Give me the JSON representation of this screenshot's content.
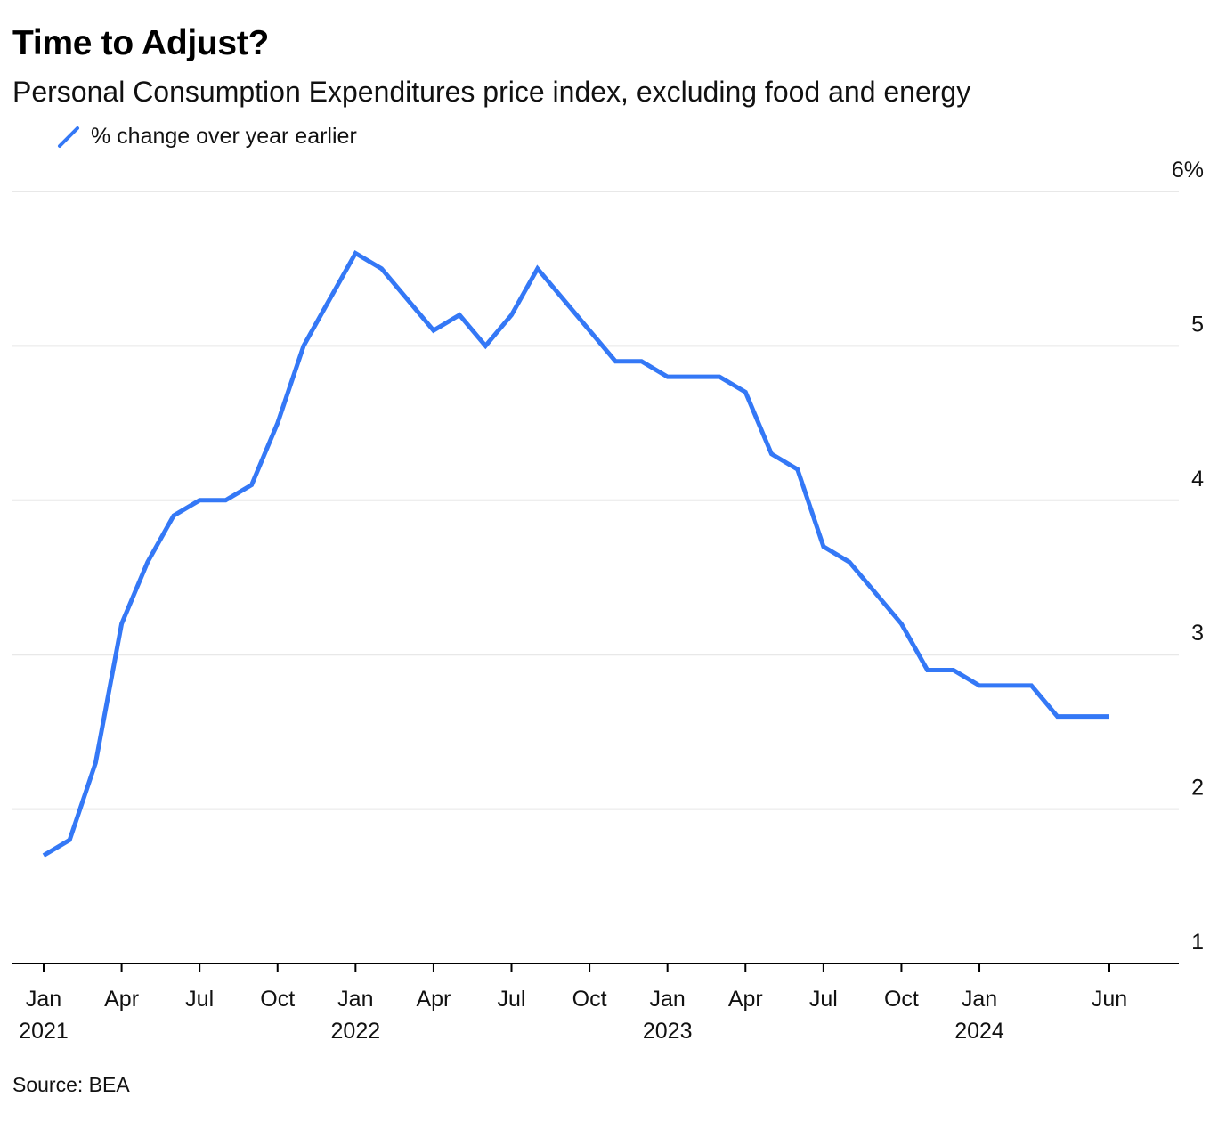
{
  "title": "Time to Adjust?",
  "subtitle": "Personal Consumption Expenditures price index, excluding food and energy",
  "legend": {
    "label": "% change over year earlier"
  },
  "source": "Source: BEA",
  "colors": {
    "series": "#3478f6",
    "grid": "#e8e8e8",
    "axis": "#000000"
  },
  "chart_data": {
    "type": "line",
    "title": "Time to Adjust?",
    "subtitle": "Personal Consumption Expenditures price index, excluding food and energy",
    "xlabel": "",
    "ylabel": "",
    "ylim": [
      1,
      6
    ],
    "y_ticks": [
      {
        "value": 1,
        "label": "1"
      },
      {
        "value": 2,
        "label": "2"
      },
      {
        "value": 3,
        "label": "3"
      },
      {
        "value": 4,
        "label": "4"
      },
      {
        "value": 5,
        "label": "5"
      },
      {
        "value": 6,
        "label": "6%"
      }
    ],
    "y_axis_side": "right",
    "grid": true,
    "legend_position": "top-left",
    "x_ticks": [
      {
        "date": "2021-01",
        "label": "Jan",
        "year": "2021"
      },
      {
        "date": "2021-04",
        "label": "Apr",
        "year": ""
      },
      {
        "date": "2021-07",
        "label": "Jul",
        "year": ""
      },
      {
        "date": "2021-10",
        "label": "Oct",
        "year": ""
      },
      {
        "date": "2022-01",
        "label": "Jan",
        "year": "2022"
      },
      {
        "date": "2022-04",
        "label": "Apr",
        "year": ""
      },
      {
        "date": "2022-07",
        "label": "Jul",
        "year": ""
      },
      {
        "date": "2022-10",
        "label": "Oct",
        "year": ""
      },
      {
        "date": "2023-01",
        "label": "Jan",
        "year": "2023"
      },
      {
        "date": "2023-04",
        "label": "Apr",
        "year": ""
      },
      {
        "date": "2023-07",
        "label": "Jul",
        "year": ""
      },
      {
        "date": "2023-10",
        "label": "Oct",
        "year": ""
      },
      {
        "date": "2024-01",
        "label": "Jan",
        "year": "2024"
      },
      {
        "date": "2024-06",
        "label": "Jun",
        "year": ""
      }
    ],
    "series": [
      {
        "name": "% change over year earlier",
        "x": [
          "2021-01",
          "2021-02",
          "2021-03",
          "2021-04",
          "2021-05",
          "2021-06",
          "2021-07",
          "2021-08",
          "2021-09",
          "2021-10",
          "2021-11",
          "2021-12",
          "2022-01",
          "2022-02",
          "2022-03",
          "2022-04",
          "2022-05",
          "2022-06",
          "2022-07",
          "2022-08",
          "2022-09",
          "2022-10",
          "2022-11",
          "2022-12",
          "2023-01",
          "2023-02",
          "2023-03",
          "2023-04",
          "2023-05",
          "2023-06",
          "2023-07",
          "2023-08",
          "2023-09",
          "2023-10",
          "2023-11",
          "2023-12",
          "2024-01",
          "2024-02",
          "2024-03",
          "2024-04",
          "2024-05",
          "2024-06"
        ],
        "values": [
          1.7,
          1.8,
          2.3,
          3.2,
          3.6,
          3.9,
          4.0,
          4.0,
          4.1,
          4.5,
          5.0,
          5.3,
          5.6,
          5.5,
          5.3,
          5.1,
          5.2,
          5.0,
          5.2,
          5.5,
          5.3,
          5.1,
          4.9,
          4.9,
          4.8,
          4.8,
          4.8,
          4.7,
          4.3,
          4.2,
          3.7,
          3.6,
          3.4,
          3.2,
          2.9,
          2.9,
          2.8,
          2.8,
          2.8,
          2.6,
          2.6,
          2.6
        ]
      }
    ]
  }
}
